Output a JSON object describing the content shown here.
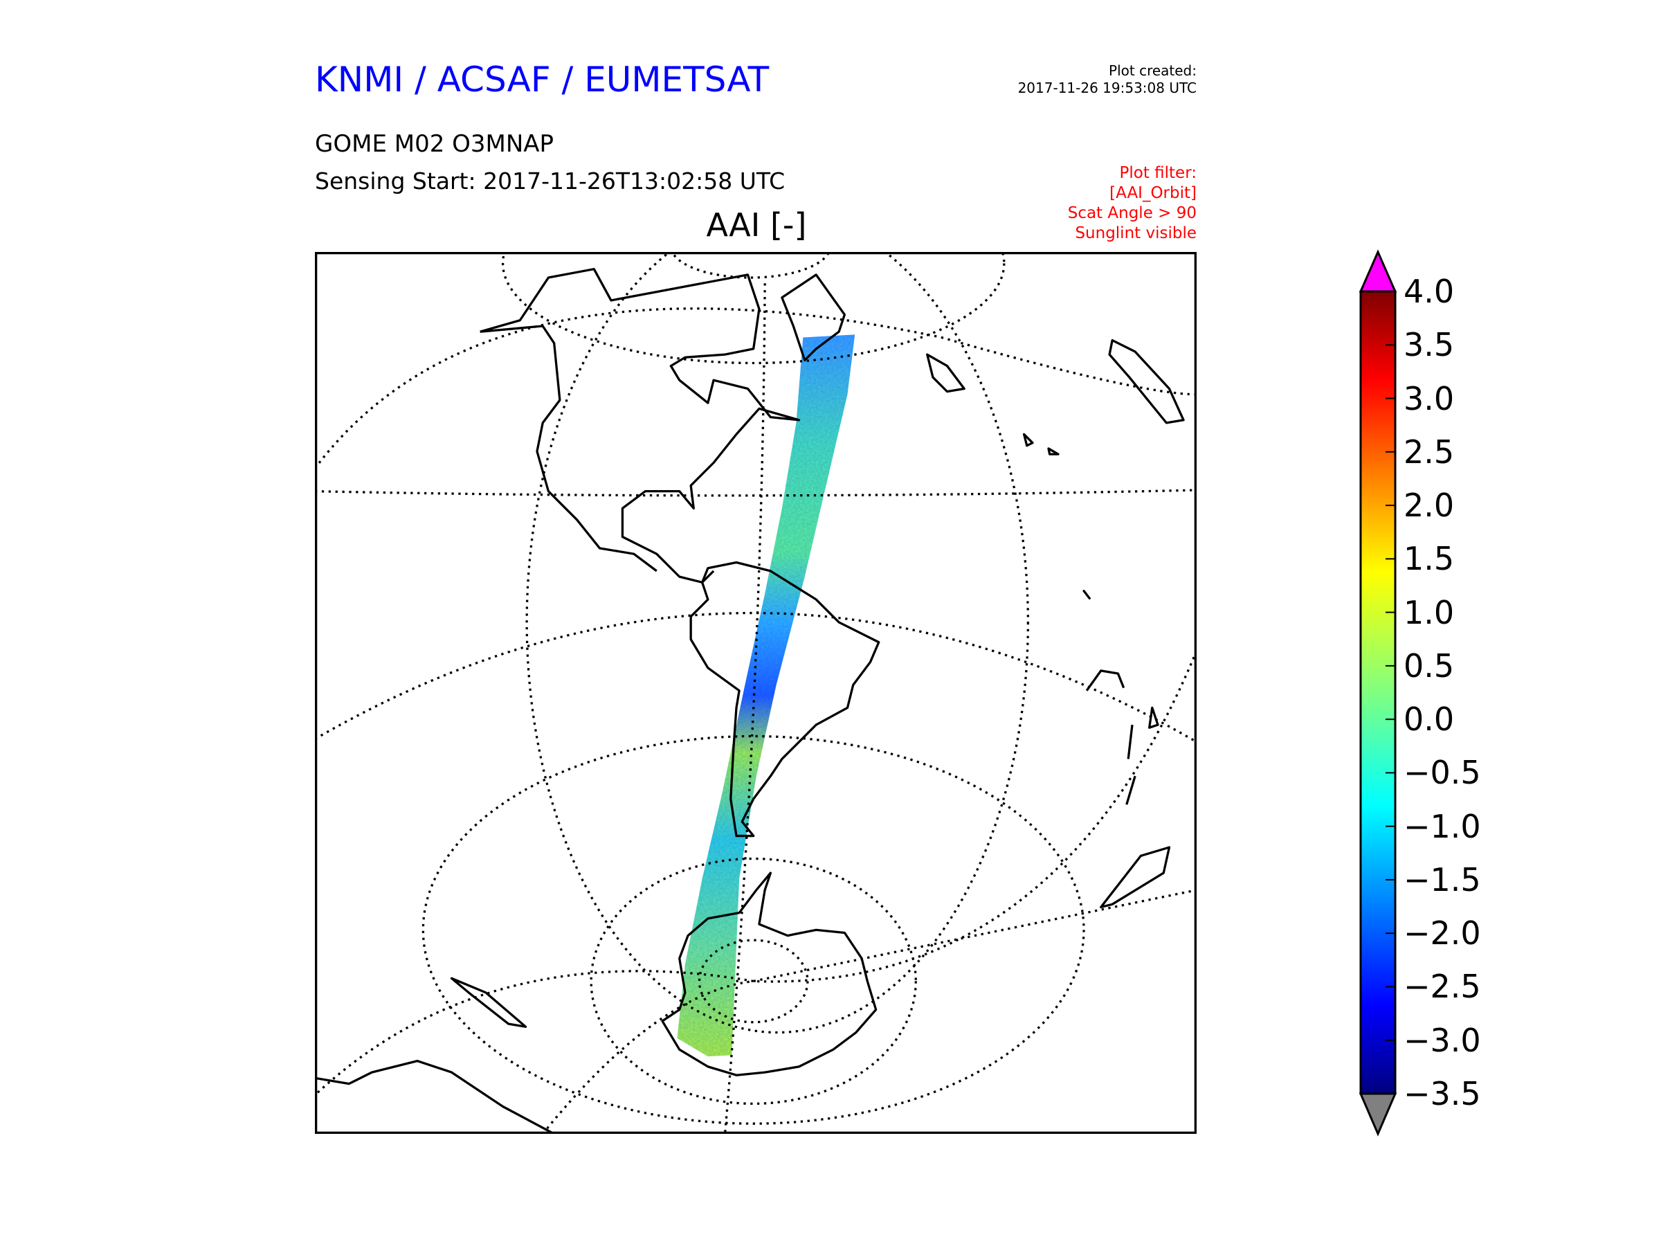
{
  "header": {
    "organisation": "KNMI / ACSAF / EUMETSAT",
    "plot_created_label": "Plot created:",
    "plot_created_value": "2017-11-26 19:53:08 UTC",
    "product": "GOME M02 O3MNAP",
    "sensing_start": "Sensing Start: 2017-11-26T13:02:58 UTC",
    "filter_lines": [
      "Plot filter:",
      "[AAI_Orbit]",
      "Scat Angle > 90",
      "Sunglint visible"
    ]
  },
  "plot": {
    "title": "AAI [-]"
  },
  "colorbar": {
    "min": -3.5,
    "max": 4.0,
    "tick_labels": [
      "4.0",
      "3.5",
      "3.0",
      "2.5",
      "2.0",
      "1.5",
      "1.0",
      "0.5",
      "0.0",
      "−0.5",
      "−1.0",
      "−1.5",
      "−2.0",
      "−2.5",
      "−3.0",
      "−3.5"
    ],
    "over_color": "#ff00ff",
    "under_color": "#808080",
    "colormap": "jet"
  }
}
